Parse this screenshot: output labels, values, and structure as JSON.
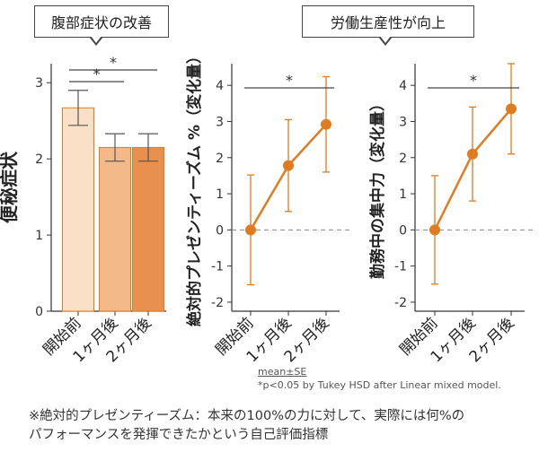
{
  "callouts": {
    "left": "腹部症状の改善",
    "right": "労働生産性が向上"
  },
  "notes": {
    "mean_se": "mean±SE",
    "significance": "*p<0.05 by  Tukey HSD after Linear mixed model."
  },
  "footnote": {
    "line1": "※絶対的プレゼンティーズム：本来の100%の力に対して、実際には何%の",
    "line2": "パフォーマンスを発揮できたかという自己評価指標"
  },
  "colors": {
    "bar_1": "#fae0c6",
    "bar_2": "#f3b989",
    "bar_3": "#e8914e",
    "line": "#e07b1f",
    "axis": "#333333"
  },
  "chart_data": [
    {
      "type": "bar",
      "categories": [
        "開始前",
        "1ヶ月後",
        "2ヶ月後"
      ],
      "values": [
        2.67,
        2.15,
        2.15
      ],
      "error": [
        0.23,
        0.18,
        0.18
      ],
      "ylabel": "便秘症状",
      "ylim": [
        0,
        3.25
      ],
      "yticks": [
        0,
        1,
        2,
        3
      ],
      "significance": [
        {
          "from": "開始前",
          "to": "1ヶ月後",
          "label": "*"
        },
        {
          "from": "開始前",
          "to": "2ヶ月後",
          "label": "*"
        }
      ]
    },
    {
      "type": "line",
      "categories": [
        "開始前",
        "1ヶ月後",
        "2ヶ月後"
      ],
      "values": [
        0,
        1.78,
        2.92
      ],
      "error": [
        1.52,
        1.27,
        1.32
      ],
      "ylabel": "絶対的プレゼンティーズム %（変化量）",
      "ylim": [
        -2.25,
        4.6
      ],
      "yticks": [
        -2,
        -1,
        0,
        1,
        2,
        3,
        4
      ],
      "reference_line": 0,
      "significance": [
        {
          "from": "開始前",
          "to": "2ヶ月後",
          "label": "*"
        }
      ]
    },
    {
      "type": "line",
      "categories": [
        "開始前",
        "1ヶ月後",
        "2ヶ月後"
      ],
      "values": [
        0,
        2.1,
        3.35
      ],
      "error": [
        1.5,
        1.3,
        1.25
      ],
      "ylabel": "勤務中の集中力（変化量）",
      "ylim": [
        -2.25,
        4.6
      ],
      "yticks": [
        -2,
        -1,
        0,
        1,
        2,
        3,
        4
      ],
      "reference_line": 0,
      "significance": [
        {
          "from": "開始前",
          "to": "2ヶ月後",
          "label": "*"
        }
      ]
    }
  ]
}
